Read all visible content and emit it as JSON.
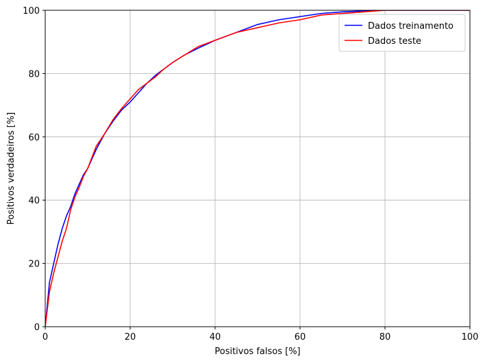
{
  "chart_data": {
    "type": "line",
    "xlabel": "Positivos falsos [%]",
    "ylabel": "Positivos verdadeiros [%]",
    "x": [
      0,
      1,
      2,
      3,
      4,
      5,
      6,
      7,
      8,
      9,
      10,
      12,
      14,
      16,
      18,
      20,
      22,
      24,
      26,
      28,
      30,
      33,
      36,
      40,
      45,
      50,
      55,
      60,
      65,
      70,
      75,
      80,
      85,
      90,
      95,
      100
    ],
    "series": [
      {
        "name": "Dados treinamento",
        "color": "#0000ff",
        "values": [
          0,
          14,
          20,
          26,
          31,
          35,
          38,
          42,
          45,
          48,
          50,
          56,
          61,
          65,
          68.5,
          71,
          74,
          77,
          79.5,
          81.5,
          83.5,
          86,
          88,
          90.5,
          93,
          95.5,
          97,
          98,
          99,
          99.5,
          99.8,
          100,
          100,
          100,
          100,
          100
        ]
      },
      {
        "name": "Dados teste",
        "color": "#ff0000",
        "values": [
          0,
          11,
          17,
          22,
          27,
          31,
          37,
          41,
          44,
          47.5,
          50,
          57,
          61,
          65.5,
          69,
          72,
          75,
          77,
          79,
          81.5,
          83.5,
          86,
          88.5,
          90.5,
          93,
          94.5,
          96,
          97,
          98.5,
          99,
          99.5,
          100,
          100,
          100,
          100,
          100
        ]
      }
    ],
    "xlim": [
      0,
      100
    ],
    "ylim": [
      0,
      100
    ],
    "xticks": [
      0,
      20,
      40,
      60,
      80,
      100
    ],
    "yticks": [
      0,
      20,
      40,
      60,
      80,
      100
    ],
    "grid": true,
    "legend": "upper right"
  }
}
